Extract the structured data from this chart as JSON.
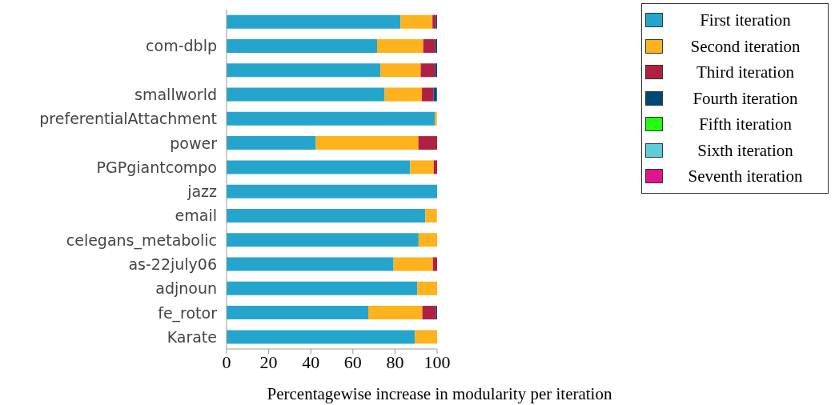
{
  "chart_data": {
    "type": "bar",
    "orientation": "horizontal",
    "stacked": true,
    "xlabel": "Percentagewise increase in modularity per iteration",
    "categories": [
      null,
      "com-dblp",
      null,
      "smallworld",
      "preferentialAttachment",
      "power",
      "PGPgiantcompo",
      "jazz",
      "email",
      "celegans_metabolic",
      "as-22july06",
      "adjnoun",
      "fe_rotor",
      "Karate"
    ],
    "series": [
      {
        "name": "First iteration",
        "color": "#26a5cc",
        "values": [
          82.6,
          71.5,
          73.1,
          75.1,
          98.9,
          42.4,
          87.2,
          100,
          94.4,
          91.2,
          79.3,
          90.6,
          67.3,
          89.4
        ]
      },
      {
        "name": "Second iteration",
        "color": "#fdb21e",
        "values": [
          15.2,
          21.9,
          19.1,
          17.7,
          1.0,
          48.7,
          11.2,
          0,
          5.5,
          8.8,
          18.7,
          9.4,
          25.7,
          10.6
        ]
      },
      {
        "name": "Third iteration",
        "color": "#b02042",
        "values": [
          1.7,
          5.7,
          6.8,
          5.5,
          null,
          8.9,
          1.6,
          0,
          null,
          0,
          2.0,
          0,
          6.5,
          0
        ]
      },
      {
        "name": "Fourth iteration",
        "color": "#00477a",
        "values": [
          0.5,
          0.9,
          1.0,
          1.6,
          0,
          0,
          0,
          0,
          0,
          0,
          0,
          0,
          0.5,
          0
        ]
      },
      {
        "name": "Fifth iteration",
        "color": "#22ff10",
        "values": [
          0,
          0,
          0,
          null,
          0,
          0,
          0,
          0,
          0,
          0,
          0,
          0,
          0,
          0
        ]
      },
      {
        "name": "Sixth iteration",
        "color": "#5dced8",
        "values": [
          0,
          0,
          0,
          0,
          0,
          0,
          0,
          0,
          0,
          0,
          0,
          0,
          0,
          0
        ]
      },
      {
        "name": "Seventh iteration",
        "color": "#e0158c",
        "values": [
          0,
          0,
          0,
          0,
          0,
          0,
          0,
          0,
          0,
          0,
          0,
          0,
          0,
          0
        ]
      }
    ],
    "xlim": [
      0,
      100
    ],
    "xticks": [
      0,
      20,
      40,
      60,
      80,
      100
    ],
    "grid": false,
    "legend": "top right"
  }
}
